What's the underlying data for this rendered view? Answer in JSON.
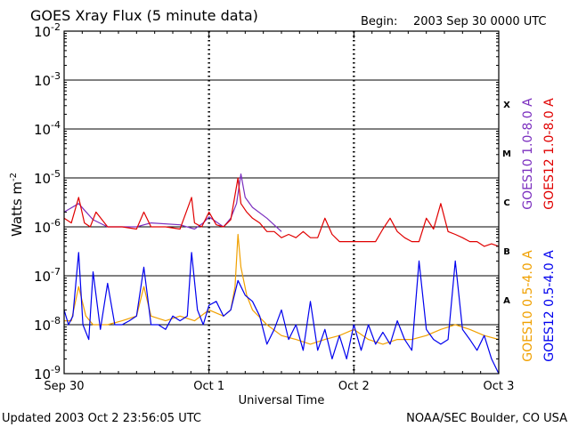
{
  "chart_data": {
    "type": "line",
    "title": "GOES Xray Flux (5 minute data)",
    "begin_label": "Begin:",
    "begin_value": "2003 Sep 30 0000 UTC",
    "xlabel": "Universal Time",
    "ylabel_base": "Watts m",
    "ylabel_exp": "-2",
    "y_scale": "log",
    "ylim": [
      1e-09,
      0.01
    ],
    "xlim_days": [
      0,
      3
    ],
    "grid": "horizontal at each decade, dotted vertical at day boundaries",
    "x_ticks": [
      {
        "label": "Sep 30",
        "day": 0
      },
      {
        "label": "Oct 1",
        "day": 1
      },
      {
        "label": "Oct 2",
        "day": 2
      },
      {
        "label": "Oct 3",
        "day": 3
      }
    ],
    "y_ticks": [
      {
        "base": "10",
        "exp": "-9",
        "value": 1e-09
      },
      {
        "base": "10",
        "exp": "-8",
        "value": 1e-08
      },
      {
        "base": "10",
        "exp": "-7",
        "value": 1e-07
      },
      {
        "base": "10",
        "exp": "-6",
        "value": 1e-06
      },
      {
        "base": "10",
        "exp": "-5",
        "value": 1e-05
      },
      {
        "base": "10",
        "exp": "-4",
        "value": 0.0001
      },
      {
        "base": "10",
        "exp": "-3",
        "value": 0.001
      },
      {
        "base": "10",
        "exp": "-2",
        "value": 0.01
      }
    ],
    "flare_classes": [
      {
        "label": "A",
        "value": 3.2e-08
      },
      {
        "label": "B",
        "value": 3.2e-07
      },
      {
        "label": "C",
        "value": 3.2e-06
      },
      {
        "label": "M",
        "value": 3.2e-05
      },
      {
        "label": "X",
        "value": 0.00032
      }
    ],
    "series": [
      {
        "name": "GOES10 1.0-8.0 A",
        "color": "#7b2fbf",
        "x": [
          0.0,
          0.1,
          0.14,
          0.2,
          0.3,
          0.5,
          0.6,
          0.8,
          0.9,
          0.96,
          1.0,
          1.1,
          1.15,
          1.19,
          1.22,
          1.25,
          1.3,
          1.4,
          1.5
        ],
        "y": [
          2e-06,
          3e-06,
          2.2e-06,
          1.4e-06,
          1e-06,
          1e-06,
          1.2e-06,
          1.1e-06,
          9e-07,
          1.2e-06,
          1.6e-06,
          1e-06,
          1.5e-06,
          3e-06,
          1.2e-05,
          4e-06,
          2.5e-06,
          1.5e-06,
          8e-07
        ]
      },
      {
        "name": "GOES12 1.0-8.0 A",
        "color": "#e00000",
        "x": [
          0.0,
          0.05,
          0.1,
          0.14,
          0.18,
          0.22,
          0.3,
          0.4,
          0.5,
          0.55,
          0.6,
          0.7,
          0.8,
          0.88,
          0.9,
          0.95,
          1.0,
          1.05,
          1.1,
          1.15,
          1.2,
          1.22,
          1.26,
          1.3,
          1.35,
          1.4,
          1.45,
          1.5,
          1.55,
          1.6,
          1.65,
          1.7,
          1.75,
          1.8,
          1.85,
          1.9,
          1.95,
          2.0,
          2.05,
          2.1,
          2.15,
          2.2,
          2.25,
          2.3,
          2.35,
          2.4,
          2.45,
          2.5,
          2.55,
          2.6,
          2.65,
          2.7,
          2.75,
          2.8,
          2.85,
          2.9,
          2.95,
          3.0
        ],
        "y": [
          1.5e-06,
          1.2e-06,
          4e-06,
          1.2e-06,
          1e-06,
          2e-06,
          1e-06,
          1e-06,
          9e-07,
          2e-06,
          1e-06,
          1e-06,
          9e-07,
          4e-06,
          1.2e-06,
          1e-06,
          2e-06,
          1.1e-06,
          1e-06,
          1.4e-06,
          1e-05,
          3e-06,
          2e-06,
          1.5e-06,
          1.2e-06,
          8e-07,
          8e-07,
          6e-07,
          7e-07,
          6e-07,
          8e-07,
          6e-07,
          6e-07,
          1.5e-06,
          7e-07,
          5e-07,
          5e-07,
          5e-07,
          5e-07,
          5e-07,
          5e-07,
          9e-07,
          1.5e-06,
          8e-07,
          6e-07,
          5e-07,
          5e-07,
          1.5e-06,
          9e-07,
          3e-06,
          8e-07,
          7e-07,
          6e-07,
          5e-07,
          5e-07,
          4e-07,
          4.5e-07,
          4e-07
        ]
      },
      {
        "name": "GOES10 0.5-4.0 A",
        "color": "#f0a000",
        "x": [
          0.0,
          0.05,
          0.1,
          0.15,
          0.2,
          0.3,
          0.4,
          0.5,
          0.55,
          0.6,
          0.7,
          0.8,
          0.9,
          1.0,
          1.1,
          1.15,
          1.18,
          1.2,
          1.22,
          1.26,
          1.3,
          1.4,
          1.5,
          1.6,
          1.7,
          1.8,
          1.9,
          2.0,
          2.1,
          2.2,
          2.3,
          2.4,
          2.5,
          2.6,
          2.7,
          2.8,
          2.9,
          3.0
        ],
        "y": [
          1.2e-08,
          1.2e-08,
          6e-08,
          1.5e-08,
          1e-08,
          1e-08,
          1.2e-08,
          1.5e-08,
          6e-08,
          1.5e-08,
          1.2e-08,
          1.5e-08,
          1.2e-08,
          2e-08,
          1.5e-08,
          2e-08,
          6e-08,
          7e-07,
          1.5e-07,
          4e-08,
          2e-08,
          1e-08,
          6e-09,
          5e-09,
          4e-09,
          5e-09,
          6e-09,
          8e-09,
          5e-09,
          4e-09,
          5e-09,
          5e-09,
          6e-09,
          8e-09,
          1e-08,
          8e-09,
          6e-09,
          5e-09
        ]
      },
      {
        "name": "GOES12 0.5-4.0 A",
        "color": "#0000ee",
        "x": [
          0.0,
          0.03,
          0.06,
          0.1,
          0.13,
          0.17,
          0.2,
          0.25,
          0.3,
          0.35,
          0.4,
          0.45,
          0.5,
          0.55,
          0.6,
          0.65,
          0.7,
          0.75,
          0.8,
          0.85,
          0.88,
          0.92,
          0.96,
          1.0,
          1.05,
          1.1,
          1.15,
          1.2,
          1.25,
          1.3,
          1.35,
          1.4,
          1.45,
          1.5,
          1.55,
          1.6,
          1.65,
          1.7,
          1.75,
          1.8,
          1.85,
          1.9,
          1.95,
          2.0,
          2.05,
          2.1,
          2.15,
          2.2,
          2.25,
          2.3,
          2.35,
          2.4,
          2.45,
          2.5,
          2.55,
          2.6,
          2.65,
          2.7,
          2.75,
          2.8,
          2.85,
          2.9,
          2.95,
          3.0
        ],
        "y": [
          2e-08,
          1e-08,
          1.5e-08,
          3e-07,
          1e-08,
          5e-09,
          1.2e-07,
          8e-09,
          7e-08,
          1e-08,
          1e-08,
          1.2e-08,
          1.5e-08,
          1.5e-07,
          1e-08,
          1e-08,
          8e-09,
          1.5e-08,
          1.2e-08,
          1.5e-08,
          3e-07,
          2e-08,
          1e-08,
          2.5e-08,
          3e-08,
          1.5e-08,
          2e-08,
          8e-08,
          4e-08,
          3e-08,
          1.5e-08,
          4e-09,
          8e-09,
          2e-08,
          5e-09,
          1e-08,
          3e-09,
          3e-08,
          3e-09,
          8e-09,
          2e-09,
          6e-09,
          2e-09,
          1e-08,
          3e-09,
          1e-08,
          4e-09,
          7e-09,
          4e-09,
          1.2e-08,
          5e-09,
          3e-09,
          2e-07,
          8e-09,
          5e-09,
          4e-09,
          5e-09,
          2e-07,
          8e-09,
          5e-09,
          3e-09,
          6e-09,
          2e-09,
          1e-09
        ]
      }
    ]
  },
  "footer": {
    "updated": "Updated 2003 Oct  2 23:56:05 UTC",
    "source": "NOAA/SEC Boulder, CO USA"
  }
}
